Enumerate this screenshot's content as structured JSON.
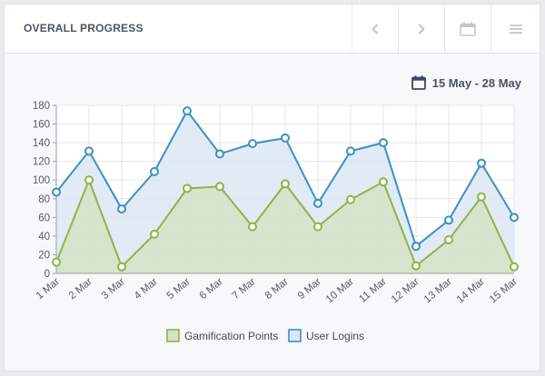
{
  "header": {
    "title": "OVERALL PROGRESS",
    "tools": [
      {
        "icon": "chevron-left-icon"
      },
      {
        "icon": "chevron-right-icon"
      },
      {
        "icon": "calendar-icon"
      },
      {
        "icon": "menu-icon"
      }
    ]
  },
  "date_range": {
    "icon": "calendar-icon",
    "label": "15 May - 28 May"
  },
  "chart_data": {
    "type": "line",
    "categories": [
      "1 Mar",
      "2 Mar",
      "3 Mar",
      "4 Mar",
      "5 Mar",
      "6 Mar",
      "7 Mar",
      "8 Mar",
      "9 Mar",
      "10 Mar",
      "11 Mar",
      "12 Mar",
      "13 Mar",
      "14 Mar",
      "15 Mar"
    ],
    "ylim": [
      0,
      180
    ],
    "yticks": [
      0,
      20,
      40,
      60,
      80,
      100,
      120,
      140,
      160,
      180
    ],
    "grid": true,
    "legend": "bottom-center",
    "series": [
      {
        "name": "Gamification Points",
        "color": "#8fb447",
        "fill": "#d3e2c6",
        "values": [
          12,
          100,
          7,
          42,
          91,
          93,
          50,
          96,
          50,
          79,
          98,
          8,
          36,
          82,
          7
        ]
      },
      {
        "name": "User Logins",
        "color": "#3d8fc4",
        "fill": "#dbe8f3",
        "values": [
          87,
          131,
          69,
          109,
          174,
          128,
          139,
          145,
          75,
          131,
          140,
          29,
          57,
          118,
          60
        ]
      }
    ]
  }
}
